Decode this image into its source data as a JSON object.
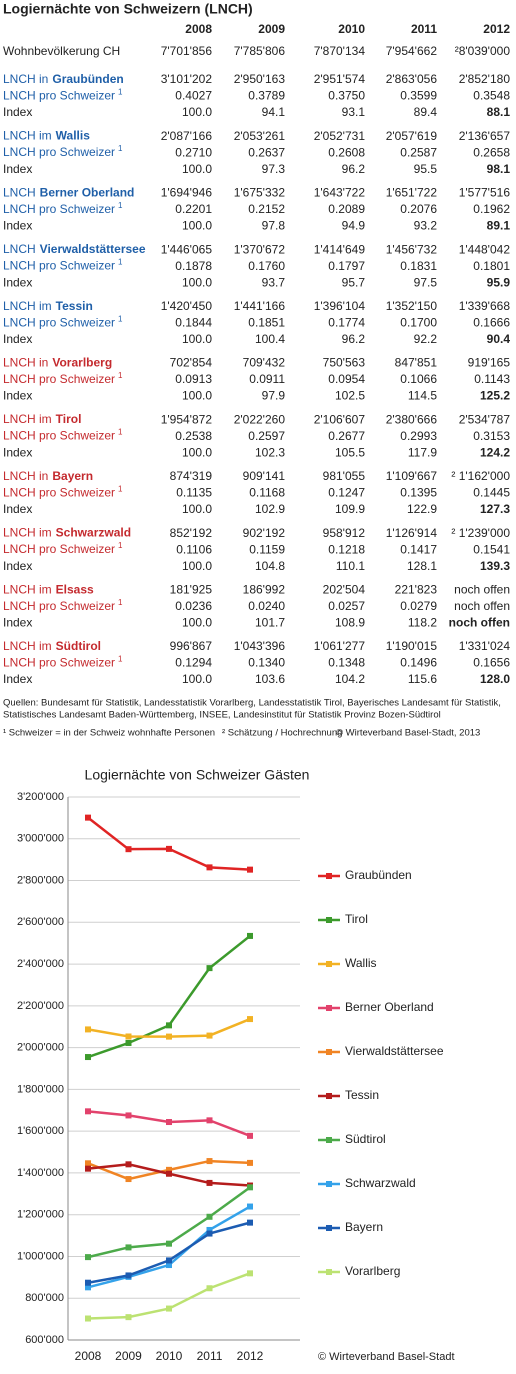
{
  "table": {
    "title": "Logiernächte von Schweizern (LNCH)",
    "columns": [
      "2008",
      "2009",
      "2010",
      "2011",
      "2012"
    ],
    "population": {
      "label": "Wohnbevölkerung CH",
      "values": [
        "7'701'856",
        "7'785'806",
        "7'870'134",
        "7'954'662",
        "²8'039'000"
      ]
    },
    "per_capita_label": "LNCH pro Schweizer",
    "per_capita_mark": "1",
    "index_label": "Index",
    "domestic_color": "#1f5fa8",
    "foreign_color": "#c42a2e",
    "regions": [
      {
        "prefix": "LNCH in",
        "name": "Graubünden",
        "foreign": false,
        "total": [
          "3'101'202",
          "2'950'163",
          "2'951'574",
          "2'863'056",
          "2'852'180"
        ],
        "per_capita": [
          "0.4027",
          "0.3789",
          "0.3750",
          "0.3599",
          "0.3548"
        ],
        "index": [
          "100.0",
          "94.1",
          "93.1",
          "89.4",
          "88.1"
        ]
      },
      {
        "prefix": "LNCH im",
        "name": "Wallis",
        "foreign": false,
        "total": [
          "2'087'166",
          "2'053'261",
          "2'052'731",
          "2'057'619",
          "2'136'657"
        ],
        "per_capita": [
          "0.2710",
          "0.2637",
          "0.2608",
          "0.2587",
          "0.2658"
        ],
        "index": [
          "100.0",
          "97.3",
          "96.2",
          "95.5",
          "98.1"
        ]
      },
      {
        "prefix": "LNCH",
        "name": "Berner Oberland",
        "foreign": false,
        "total": [
          "1'694'946",
          "1'675'332",
          "1'643'722",
          "1'651'722",
          "1'577'516"
        ],
        "per_capita": [
          "0.2201",
          "0.2152",
          "0.2089",
          "0.2076",
          "0.1962"
        ],
        "index": [
          "100.0",
          "97.8",
          "94.9",
          "93.2",
          "89.1"
        ]
      },
      {
        "prefix": "LNCH",
        "name": "Vierwaldstättersee",
        "foreign": false,
        "total": [
          "1'446'065",
          "1'370'672",
          "1'414'649",
          "1'456'732",
          "1'448'042"
        ],
        "per_capita": [
          "0.1878",
          "0.1760",
          "0.1797",
          "0.1831",
          "0.1801"
        ],
        "index": [
          "100.0",
          "93.7",
          "95.7",
          "97.5",
          "95.9"
        ]
      },
      {
        "prefix": "LNCH im",
        "name": "Tessin",
        "foreign": false,
        "total": [
          "1'420'450",
          "1'441'166",
          "1'396'104",
          "1'352'150",
          "1'339'668"
        ],
        "per_capita": [
          "0.1844",
          "0.1851",
          "0.1774",
          "0.1700",
          "0.1666"
        ],
        "index": [
          "100.0",
          "100.4",
          "96.2",
          "92.2",
          "90.4"
        ]
      },
      {
        "prefix": "LNCH in",
        "name": "Vorarlberg",
        "foreign": true,
        "total": [
          "702'854",
          "709'432",
          "750'563",
          "847'851",
          "919'165"
        ],
        "per_capita": [
          "0.0913",
          "0.0911",
          "0.0954",
          "0.1066",
          "0.1143"
        ],
        "index": [
          "100.0",
          "97.9",
          "102.5",
          "114.5",
          "125.2"
        ]
      },
      {
        "prefix": "LNCH im",
        "name": "Tirol",
        "foreign": true,
        "total": [
          "1'954'872",
          "2'022'260",
          "2'106'607",
          "2'380'666",
          "2'534'787"
        ],
        "per_capita": [
          "0.2538",
          "0.2597",
          "0.2677",
          "0.2993",
          "0.3153"
        ],
        "index": [
          "100.0",
          "102.3",
          "105.5",
          "117.9",
          "124.2"
        ]
      },
      {
        "prefix": "LNCH in",
        "name": "Bayern",
        "foreign": true,
        "total": [
          "874'319",
          "909'141",
          "981'055",
          "1'109'667",
          "² 1'162'000"
        ],
        "per_capita": [
          "0.1135",
          "0.1168",
          "0.1247",
          "0.1395",
          "0.1445"
        ],
        "index": [
          "100.0",
          "102.9",
          "109.9",
          "122.9",
          "127.3"
        ]
      },
      {
        "prefix": "LNCH im",
        "name": "Schwarzwald",
        "foreign": true,
        "total": [
          "852'192",
          "902'192",
          "958'912",
          "1'126'914",
          "² 1'239'000"
        ],
        "per_capita": [
          "0.1106",
          "0.1159",
          "0.1218",
          "0.1417",
          "0.1541"
        ],
        "index": [
          "100.0",
          "104.8",
          "110.1",
          "128.1",
          "139.3"
        ]
      },
      {
        "prefix": "LNCH im",
        "name": "Elsass",
        "foreign": true,
        "total": [
          "181'925",
          "186'992",
          "202'504",
          "221'823",
          "noch offen"
        ],
        "per_capita": [
          "0.0236",
          "0.0240",
          "0.0257",
          "0.0279",
          "noch offen"
        ],
        "index": [
          "100.0",
          "101.7",
          "108.9",
          "118.2",
          "noch offen"
        ]
      },
      {
        "prefix": "LNCH im",
        "name": "Südtirol",
        "foreign": true,
        "total": [
          "996'867",
          "1'043'396",
          "1'061'277",
          "1'190'015",
          "1'331'024"
        ],
        "per_capita": [
          "0.1294",
          "0.1340",
          "0.1348",
          "0.1496",
          "0.1656"
        ],
        "index": [
          "100.0",
          "103.6",
          "104.2",
          "115.6",
          "128.0"
        ]
      }
    ],
    "sources": [
      "Quellen: Bundesamt für Statistik, Landesstatistik Vorarlberg, Landesstatistik Tirol, Bayerisches Landesamt für Statistik,",
      "Statistisches Landesamt Baden-Württemberg, INSEE, Landesinstitut für Statistik Provinz Bozen-Südtirol"
    ],
    "footnote1": "¹ Schweizer = in der Schweiz wohnhafte Personen",
    "footnote2": "² Schätzung / Hochrechnung",
    "copyright": "© Wirteverband Basel-Stadt, 2013"
  },
  "chart_data": {
    "type": "line",
    "title": "Logiernächte von Schweizer Gästen",
    "categories": [
      "2008",
      "2009",
      "2010",
      "2011",
      "2012"
    ],
    "series": [
      {
        "name": "Graubünden",
        "color": "#e02424",
        "values": [
          3101202,
          2950163,
          2951574,
          2863056,
          2852180
        ]
      },
      {
        "name": "Tirol",
        "color": "#3c9a2c",
        "values": [
          1954872,
          2022260,
          2106607,
          2380666,
          2534787
        ]
      },
      {
        "name": "Wallis",
        "color": "#f2b224",
        "values": [
          2087166,
          2053261,
          2052731,
          2057619,
          2136657
        ]
      },
      {
        "name": "Berner Oberland",
        "color": "#e2426c",
        "values": [
          1694946,
          1675332,
          1643722,
          1651722,
          1577516
        ]
      },
      {
        "name": "Vierwaldstättersee",
        "color": "#f08424",
        "values": [
          1446065,
          1370672,
          1414649,
          1456732,
          1448042
        ]
      },
      {
        "name": "Tessin",
        "color": "#b41c1c",
        "values": [
          1420450,
          1441166,
          1396104,
          1352150,
          1339668
        ]
      },
      {
        "name": "Südtirol",
        "color": "#4caa4a",
        "values": [
          996867,
          1043396,
          1061277,
          1190015,
          1331024
        ]
      },
      {
        "name": "Schwarzwald",
        "color": "#34a2ea",
        "values": [
          852192,
          902192,
          958912,
          1126914,
          1239000
        ]
      },
      {
        "name": "Bayern",
        "color": "#1c5cb2",
        "values": [
          874319,
          909141,
          981055,
          1109667,
          1162000
        ]
      },
      {
        "name": "Vorarlberg",
        "color": "#bce272",
        "values": [
          702854,
          709432,
          750563,
          847851,
          919165
        ]
      }
    ],
    "ylim": [
      600000,
      3200000
    ],
    "yticks": [
      {
        "value": 600000,
        "label": "600'000"
      },
      {
        "value": 800000,
        "label": "800'000"
      },
      {
        "value": 1000000,
        "label": "1'000'000"
      },
      {
        "value": 1200000,
        "label": "1'200'000"
      },
      {
        "value": 1400000,
        "label": "1'400'000"
      },
      {
        "value": 1600000,
        "label": "1'600'000"
      },
      {
        "value": 1800000,
        "label": "1'800'000"
      },
      {
        "value": 2000000,
        "label": "2'000'000"
      },
      {
        "value": 2200000,
        "label": "2'200'000"
      },
      {
        "value": 2400000,
        "label": "2'400'000"
      },
      {
        "value": 2600000,
        "label": "2'600'000"
      },
      {
        "value": 2800000,
        "label": "2'800'000"
      },
      {
        "value": 3000000,
        "label": "3'000'000"
      },
      {
        "value": 3200000,
        "label": "3'200'000"
      }
    ],
    "grid": true,
    "legend": "right",
    "annotation": "© Wirteverband Basel-Stadt"
  }
}
